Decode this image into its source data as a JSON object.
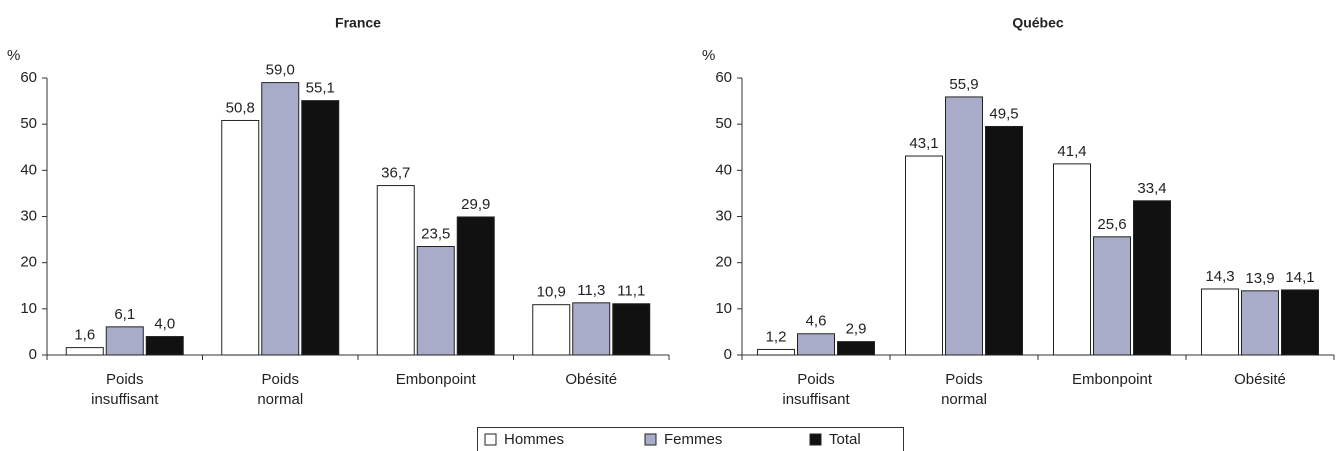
{
  "chart_data": [
    {
      "type": "bar",
      "title": "France",
      "y_label": "%",
      "categories": [
        "Poids insuffisant",
        "Poids normal",
        "Embonpoint",
        "Obésité"
      ],
      "series": [
        {
          "name": "Hommes",
          "color": "#ffffff",
          "values": [
            1.6,
            50.8,
            36.7,
            10.9
          ],
          "value_labels": [
            "1,6",
            "50,8",
            "36,7",
            "10,9"
          ]
        },
        {
          "name": "Femmes",
          "color": "#a8acc8",
          "values": [
            6.1,
            59.0,
            23.5,
            11.3
          ],
          "value_labels": [
            "6,1",
            "59,0",
            "23,5",
            "11,3"
          ]
        },
        {
          "name": "Total",
          "color": "#111111",
          "values": [
            4.0,
            55.1,
            29.9,
            11.1
          ],
          "value_labels": [
            "4,0",
            "55,1",
            "29,9",
            "11,1"
          ]
        }
      ],
      "ylim": [
        0,
        60
      ],
      "yticks": [
        0,
        10,
        20,
        30,
        40,
        50,
        60
      ]
    },
    {
      "type": "bar",
      "title": "Québec",
      "y_label": "%",
      "categories": [
        "Poids insuffisant",
        "Poids normal",
        "Embonpoint",
        "Obésité"
      ],
      "series": [
        {
          "color": "#ffffff",
          "values": [
            1.2,
            43.1,
            41.4,
            14.3
          ],
          "value_labels": [
            "1,2",
            "43,1",
            "41,4",
            "14,3"
          ]
        },
        {
          "color": "#a8acc8",
          "values": [
            4.6,
            55.9,
            25.6,
            13.9
          ],
          "value_labels": [
            "4,6",
            "55,9",
            "25,6",
            "13,9"
          ]
        },
        {
          "color": "#111111",
          "values": [
            2.9,
            49.5,
            33.4,
            14.1
          ],
          "value_labels": [
            "2,9",
            "49,5",
            "33,4",
            "14,1"
          ]
        }
      ],
      "ylim": [
        0,
        60
      ],
      "yticks": [
        0,
        10,
        20,
        30,
        40,
        50,
        60
      ]
    }
  ]
}
